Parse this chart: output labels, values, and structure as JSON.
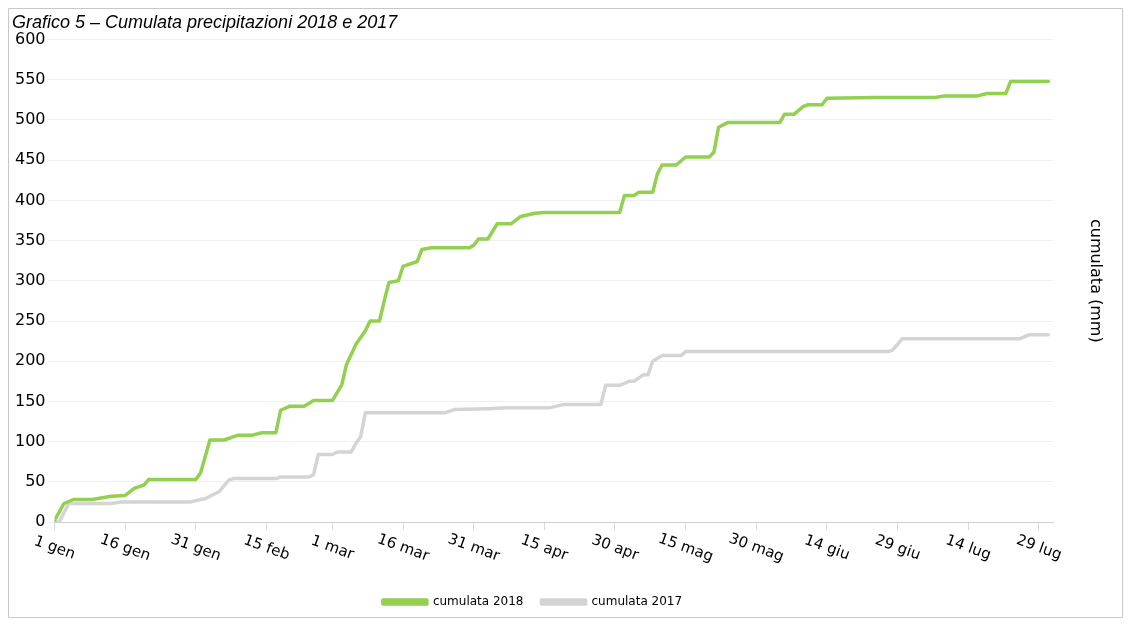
{
  "chart_data": {
    "type": "line",
    "title": "Grafico 5 – Cumulata precipitazioni 2018 e 2017",
    "ylabel": "cumulata (mm)",
    "xlim": [
      "--01-01",
      "--08-01"
    ],
    "xticks": [
      {
        "value": "--01-01",
        "label": "1 gen"
      },
      {
        "value": "--01-16",
        "label": "16 gen"
      },
      {
        "value": "--01-31",
        "label": "31 gen"
      },
      {
        "value": "--02-15",
        "label": "15 feb"
      },
      {
        "value": "--03-01",
        "label": "1 mar"
      },
      {
        "value": "--03-16",
        "label": "16 mar"
      },
      {
        "value": "--03-31",
        "label": "31 mar"
      },
      {
        "value": "--04-15",
        "label": "15 apr"
      },
      {
        "value": "--04-30",
        "label": "30 apr"
      },
      {
        "value": "--05-15",
        "label": "15 mag"
      },
      {
        "value": "--05-30",
        "label": "30 mag"
      },
      {
        "value": "--06-14",
        "label": "14 giu"
      },
      {
        "value": "--06-29",
        "label": "29 giu"
      },
      {
        "value": "--07-14",
        "label": "14 lug"
      },
      {
        "value": "--07-29",
        "label": "29 lug"
      }
    ],
    "ylim": [
      0,
      600
    ],
    "yticks": [
      0,
      50,
      100,
      150,
      200,
      250,
      300,
      350,
      400,
      450,
      500,
      550,
      600
    ],
    "grid": "y",
    "legend": "bottom",
    "marker": "none",
    "line_style": "solid",
    "series": [
      {
        "name": "cumulata 2018",
        "color": "#92d050",
        "x": [
          "--01-01",
          "--01-03",
          "--01-05",
          "--01-09",
          "--01-13",
          "--01-16",
          "--01-18",
          "--01-19",
          "--01-20",
          "--01-21",
          "--01-31",
          "--02-01",
          "--02-03",
          "--02-06",
          "--02-09",
          "--02-12",
          "--02-14",
          "--02-17",
          "--02-18",
          "--02-20",
          "--02-23",
          "--02-25",
          "--03-01",
          "--03-03",
          "--03-04",
          "--03-06",
          "--03-08",
          "--03-09",
          "--03-11",
          "--03-12",
          "--03-13",
          "--03-15",
          "--03-16",
          "--03-19",
          "--03-20",
          "--03-22",
          "--03-30",
          "--03-31",
          "--04-01",
          "--04-03",
          "--04-05",
          "--04-08",
          "--04-10",
          "--04-13",
          "--04-15",
          "--05-01",
          "--05-02",
          "--05-04",
          "--05-05",
          "--05-08",
          "--05-09",
          "--05-10",
          "--05-13",
          "--05-15",
          "--05-20",
          "--05-21",
          "--05-22",
          "--05-24",
          "--06-04",
          "--06-05",
          "--06-07",
          "--06-09",
          "--06-10",
          "--06-13",
          "--06-14",
          "--06-24",
          "--07-07",
          "--07-09",
          "--07-16",
          "--07-18",
          "--07-22",
          "--07-23",
          "--07-31"
        ],
        "values": [
          2,
          23,
          28,
          28,
          32,
          33,
          42,
          44,
          46,
          53,
          53,
          61,
          102,
          102,
          108,
          108,
          111,
          111,
          139,
          144,
          144,
          151,
          151,
          171,
          196,
          221,
          238,
          250,
          250,
          275,
          298,
          300,
          318,
          324,
          339,
          341,
          341,
          344,
          352,
          352,
          371,
          371,
          380,
          384,
          385,
          385,
          406,
          406,
          410,
          410,
          433,
          444,
          444,
          454,
          454,
          460,
          491,
          497,
          497,
          507,
          507,
          517,
          519,
          519,
          527,
          528,
          528,
          530,
          530,
          533,
          533,
          548,
          548
        ]
      },
      {
        "name": "cumulata 2017",
        "color": "#d4d4d4",
        "x": [
          "--01-01",
          "--01-02",
          "--01-04",
          "--01-13",
          "--01-15",
          "--01-30",
          "--02-01",
          "--02-02",
          "--02-03",
          "--02-05",
          "--02-07",
          "--02-08",
          "--02-17",
          "--02-18",
          "--02-24",
          "--02-25",
          "--02-26",
          "--03-01",
          "--03-02",
          "--03-05",
          "--03-06",
          "--03-07",
          "--03-08",
          "--03-25",
          "--03-27",
          "--04-03",
          "--04-07",
          "--04-16",
          "--04-19",
          "--04-27",
          "--04-28",
          "--05-01",
          "--05-03",
          "--05-04",
          "--05-06",
          "--05-07",
          "--05-08",
          "--05-10",
          "--05-14",
          "--05-15",
          "--06-27",
          "--06-28",
          "--06-30",
          "--07-25",
          "--07-27",
          "--07-31"
        ],
        "values": [
          0,
          0,
          23,
          23,
          25,
          25,
          28,
          29,
          32,
          38,
          52,
          54,
          54,
          56,
          56,
          59,
          84,
          84,
          87,
          87,
          98,
          106,
          136,
          136,
          140,
          141,
          142,
          142,
          146,
          146,
          170,
          170,
          175,
          175,
          183,
          183,
          200,
          207,
          207,
          212,
          212,
          214,
          228,
          228,
          233,
          233
        ]
      }
    ]
  }
}
